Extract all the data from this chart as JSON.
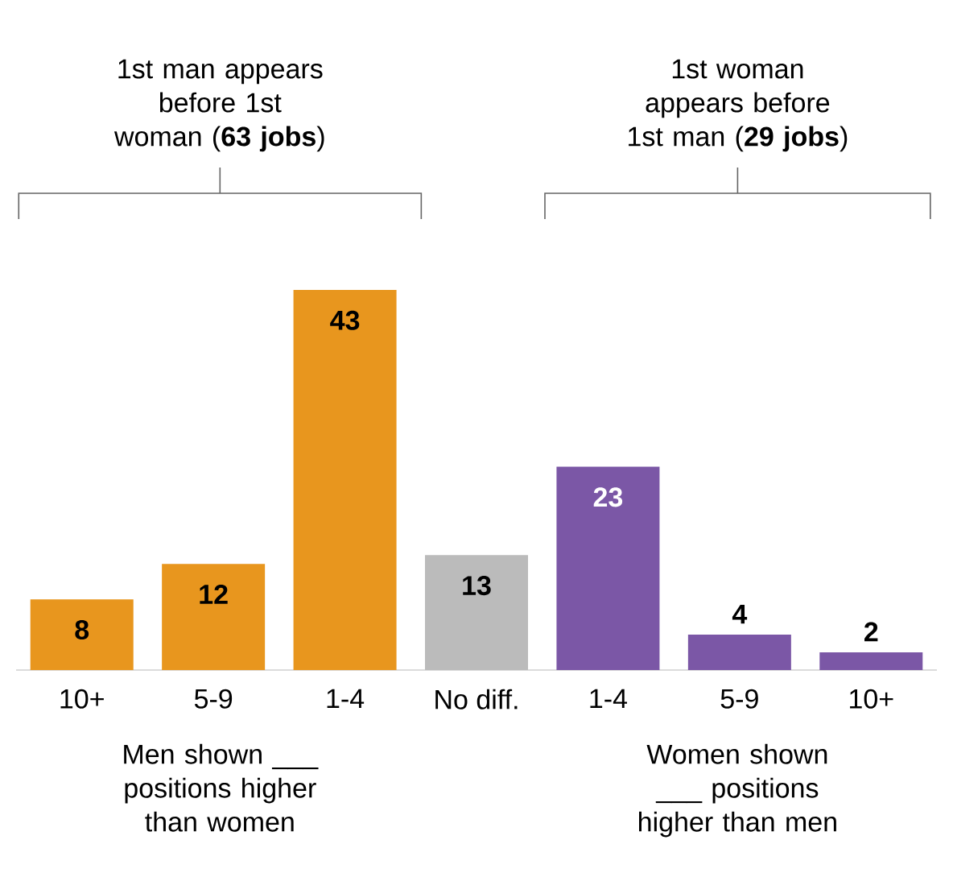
{
  "chart_data": {
    "type": "bar",
    "categories": [
      "10+",
      "5-9",
      "1-4",
      "No diff.",
      "1-4",
      "5-9",
      "10+"
    ],
    "values": [
      8,
      12,
      43,
      13,
      23,
      4,
      2
    ],
    "colors": [
      "#e8961e",
      "#e8961e",
      "#e8961e",
      "#bbbbbb",
      "#7b57a6",
      "#7b57a6",
      "#7b57a6"
    ],
    "data_labels": true,
    "annotations": [
      "1st man appears before 1st woman (**63 jobs**)",
      "1st woman appears before 1st man (**29 jobs**)",
      "Men shown ___ positions higher than women",
      "Women shown ___ positions higher than men"
    ]
  }
}
